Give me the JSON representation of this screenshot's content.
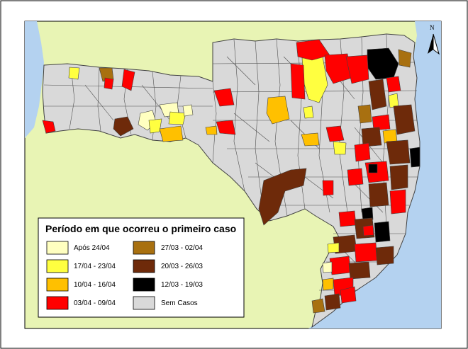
{
  "map": {
    "colors": {
      "land": "#E8F4B4",
      "sea": "#B4D2F0",
      "no_cases": "#D9D9D9",
      "border": "#404040"
    },
    "north_label": "N",
    "north_icon": "north-arrow-icon"
  },
  "legend": {
    "title": "Período em que ocorreu o primeiro caso",
    "items": [
      {
        "label": "Após 24/04",
        "color": "#FFFFC0"
      },
      {
        "label": "17/04 - 23/04",
        "color": "#FFFF40"
      },
      {
        "label": "10/04 - 16/04",
        "color": "#FFC000"
      },
      {
        "label": "03/04 - 09/04",
        "color": "#FF0000"
      },
      {
        "label": "27/03 - 02/04",
        "color": "#A87010"
      },
      {
        "label": "20/03 - 26/03",
        "color": "#6E2A0A"
      },
      {
        "label": "12/03 - 19/03",
        "color": "#000000"
      },
      {
        "label": "Sem Casos",
        "color": "#D9D9D9"
      }
    ]
  }
}
